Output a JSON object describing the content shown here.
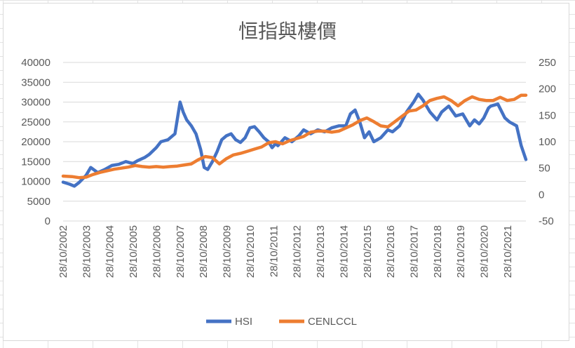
{
  "colors": {
    "hsi": "#4472C4",
    "cenlccl": "#ED7D31",
    "gridline": "#d9d9d9",
    "text": "#595959"
  },
  "chart_data": {
    "type": "line",
    "title": "恒指與樓價",
    "xlabel": "",
    "ylabel": "",
    "grid": true,
    "legend": "bottom-center",
    "x_tick_labels": [
      "28/10/2002",
      "28/10/2003",
      "28/10/2004",
      "28/10/2005",
      "28/10/2006",
      "28/10/2007",
      "28/10/2008",
      "28/10/2009",
      "28/10/2010",
      "28/10/2011",
      "28/10/2012",
      "28/10/2013",
      "28/10/2014",
      "28/10/2015",
      "28/10/2016",
      "28/10/2017",
      "28/10/2018",
      "28/10/2019",
      "28/10/2020",
      "28/10/2021"
    ],
    "y_left": {
      "min": 0,
      "max": 40000,
      "ticks": [
        "0",
        "5000",
        "10000",
        "15000",
        "20000",
        "25000",
        "30000",
        "35000",
        "40000"
      ]
    },
    "y_right": {
      "min": -50,
      "max": 250,
      "ticks": [
        "-50",
        "0",
        "50",
        "100",
        "150",
        "200",
        "250"
      ]
    },
    "x_range": [
      2002.82,
      2022.6
    ],
    "series": [
      {
        "name": "HSI",
        "axis": "left",
        "x": [
          2002.82,
          2003.1,
          2003.3,
          2003.5,
          2003.8,
          2004.0,
          2004.3,
          2004.6,
          2004.9,
          2005.2,
          2005.5,
          2005.8,
          2006.0,
          2006.3,
          2006.5,
          2006.8,
          2007.0,
          2007.3,
          2007.6,
          2007.82,
          2007.95,
          2008.1,
          2008.3,
          2008.5,
          2008.7,
          2008.85,
          2009.0,
          2009.2,
          2009.4,
          2009.6,
          2009.8,
          2010.0,
          2010.2,
          2010.4,
          2010.6,
          2010.8,
          2011.0,
          2011.2,
          2011.4,
          2011.6,
          2011.75,
          2011.9,
          2012.0,
          2012.3,
          2012.6,
          2012.9,
          2013.1,
          2013.4,
          2013.7,
          2014.0,
          2014.3,
          2014.6,
          2014.9,
          2015.1,
          2015.3,
          2015.5,
          2015.7,
          2015.9,
          2016.1,
          2016.4,
          2016.7,
          2016.9,
          2017.2,
          2017.5,
          2017.8,
          2018.0,
          2018.2,
          2018.5,
          2018.8,
          2019.0,
          2019.3,
          2019.6,
          2019.9,
          2020.2,
          2020.4,
          2020.6,
          2020.8,
          2021.0,
          2021.1,
          2021.4,
          2021.7,
          2021.9,
          2022.2,
          2022.4,
          2022.6
        ],
        "values": [
          9800,
          9300,
          8800,
          9700,
          11500,
          13500,
          12200,
          13000,
          14000,
          14300,
          15000,
          14500,
          15200,
          16000,
          16800,
          18500,
          20000,
          20500,
          22000,
          30000,
          27500,
          25500,
          24000,
          22000,
          18000,
          13500,
          13000,
          15000,
          17500,
          20500,
          21500,
          22000,
          20500,
          19800,
          21000,
          23500,
          23800,
          22500,
          21000,
          20000,
          18500,
          19500,
          19000,
          21000,
          20000,
          21500,
          23000,
          22000,
          23000,
          22500,
          23500,
          24000,
          24000,
          27000,
          28000,
          25000,
          21000,
          22500,
          20000,
          21000,
          23000,
          22500,
          24000,
          27500,
          30000,
          32000,
          30500,
          27500,
          25500,
          27500,
          29000,
          26500,
          27000,
          24000,
          25500,
          24500,
          26000,
          28500,
          29000,
          29500,
          26000,
          25000,
          24000,
          19000,
          15500
        ]
      },
      {
        "name": "CENLCCL",
        "axis": "right",
        "x": [
          2002.82,
          2003.2,
          2003.5,
          2003.8,
          2004.1,
          2004.4,
          2004.7,
          2005.0,
          2005.3,
          2005.6,
          2005.9,
          2006.2,
          2006.5,
          2006.8,
          2007.1,
          2007.4,
          2007.7,
          2008.0,
          2008.3,
          2008.6,
          2008.9,
          2009.2,
          2009.5,
          2009.8,
          2010.1,
          2010.4,
          2010.7,
          2011.0,
          2011.3,
          2011.6,
          2011.9,
          2012.2,
          2012.5,
          2012.8,
          2013.1,
          2013.4,
          2013.7,
          2014.0,
          2014.3,
          2014.6,
          2014.9,
          2015.2,
          2015.5,
          2015.8,
          2016.1,
          2016.4,
          2016.7,
          2017.0,
          2017.3,
          2017.6,
          2017.9,
          2018.2,
          2018.5,
          2018.8,
          2019.1,
          2019.4,
          2019.7,
          2020.0,
          2020.3,
          2020.6,
          2020.9,
          2021.2,
          2021.5,
          2021.8,
          2022.1,
          2022.4,
          2022.6
        ],
        "values": [
          35,
          34,
          32,
          33,
          38,
          42,
          45,
          48,
          50,
          52,
          55,
          53,
          52,
          53,
          52,
          53,
          54,
          56,
          58,
          66,
          72,
          70,
          58,
          68,
          75,
          78,
          82,
          86,
          90,
          98,
          100,
          96,
          102,
          106,
          110,
          118,
          120,
          120,
          118,
          120,
          126,
          132,
          140,
          145,
          138,
          130,
          128,
          138,
          148,
          158,
          160,
          168,
          178,
          182,
          185,
          178,
          168,
          178,
          185,
          180,
          178,
          178,
          184,
          178,
          180,
          188,
          188
        ]
      }
    ]
  },
  "legend": {
    "items": [
      "HSI",
      "CENLCCL"
    ]
  }
}
